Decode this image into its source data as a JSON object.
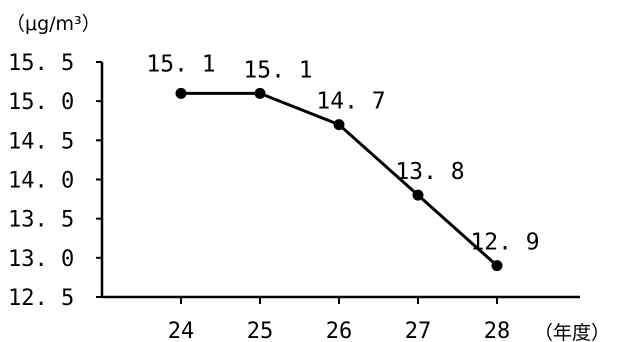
{
  "chart_data": {
    "type": "line",
    "ylabel": "（μg/m³）",
    "xlabel": "（年度）",
    "categories": [
      "24",
      "25",
      "26",
      "27",
      "28"
    ],
    "x_tick_labels": [
      "24",
      "25",
      "26",
      "27",
      "28"
    ],
    "y_tick_labels": [
      "12. 5",
      "13. 0",
      "13. 5",
      "14. 0",
      "14. 5",
      "15. 0",
      "15. 5"
    ],
    "y_ticks": [
      12.5,
      13.0,
      13.5,
      14.0,
      14.5,
      15.0,
      15.5
    ],
    "ylim": [
      12.5,
      15.5
    ],
    "series": [
      {
        "values": [
          15.1,
          15.1,
          14.7,
          13.8,
          12.9
        ],
        "data_labels": [
          "15. 1",
          "15. 1",
          "14. 7",
          "13. 8",
          "12. 9"
        ]
      }
    ],
    "grid": false,
    "colors": {
      "line": "#000000",
      "marker": "#000000",
      "axis": "#000000"
    }
  }
}
